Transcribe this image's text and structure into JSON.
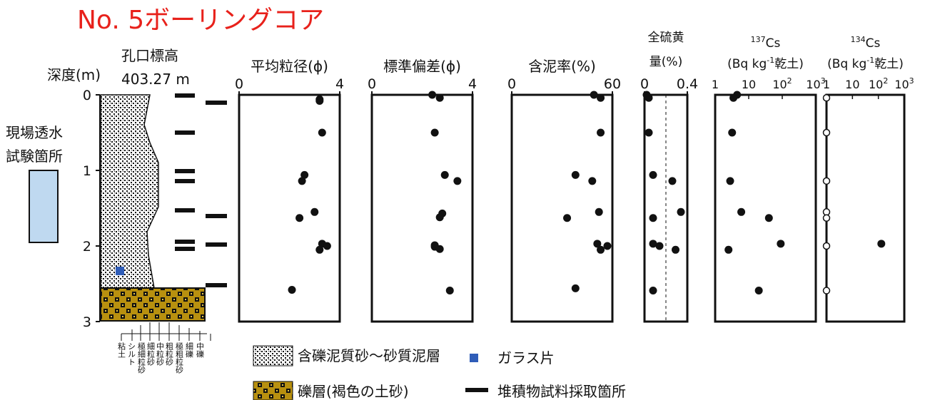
{
  "title": "No. 5ボーリングコア",
  "depth_axis": {
    "label": "深度(m)",
    "ticks": [
      "0",
      "1",
      "2",
      "3"
    ],
    "range": [
      0,
      3
    ]
  },
  "elevation": {
    "label": "孔口標高",
    "value": "403.27 m"
  },
  "test_site": {
    "label_line1": "現場透水",
    "label_line2": "試験箇所",
    "color": "#bfd9f0"
  },
  "grain_sizes": [
    "粘土",
    "シルト",
    "極細粒砂",
    "細粒砂",
    "中粒砂",
    "粗粒砂",
    "極粗粒砂",
    "細礫",
    "中礫"
  ],
  "legend": {
    "item1": "含礫泥質砂〜砂質泥層",
    "item2": "礫層(褐色の土砂)",
    "item3": "ガラス片",
    "item4": "堆積物試料採取箇所",
    "glass_color": "#2f5db8",
    "gravel_color": "#b8900f"
  },
  "chart_data": [
    {
      "type": "scatter",
      "title": "平均粒径(ϕ)",
      "xlim": [
        0,
        4
      ],
      "xticks": [
        "0",
        "4"
      ],
      "points": [
        [
          3.2,
          0.06
        ],
        [
          3.2,
          0.08
        ],
        [
          3.3,
          0.5
        ],
        [
          2.6,
          1.06
        ],
        [
          2.5,
          1.14
        ],
        [
          3.0,
          1.55
        ],
        [
          2.4,
          1.63
        ],
        [
          3.3,
          1.97
        ],
        [
          3.5,
          2.0
        ],
        [
          3.2,
          2.05
        ],
        [
          2.1,
          2.58
        ]
      ]
    },
    {
      "type": "scatter",
      "title": "標準偏差(ϕ)",
      "xlim": [
        0,
        4
      ],
      "xticks": [
        "0",
        "4"
      ],
      "points": [
        [
          2.4,
          0.0
        ],
        [
          2.7,
          0.04
        ],
        [
          2.5,
          0.5
        ],
        [
          2.9,
          1.06
        ],
        [
          3.4,
          1.14
        ],
        [
          2.8,
          1.57
        ],
        [
          2.7,
          1.62
        ],
        [
          2.5,
          1.99
        ],
        [
          2.5,
          2.01
        ],
        [
          2.7,
          2.04
        ],
        [
          3.1,
          2.59
        ]
      ]
    },
    {
      "type": "scatter",
      "title": "含泥率(%)",
      "xlim": [
        0,
        60
      ],
      "xticks": [
        "0",
        "60"
      ],
      "points": [
        [
          49,
          0.0
        ],
        [
          53,
          0.04
        ],
        [
          53,
          0.5
        ],
        [
          38,
          1.06
        ],
        [
          48,
          1.14
        ],
        [
          52,
          1.55
        ],
        [
          33,
          1.63
        ],
        [
          51,
          1.97
        ],
        [
          57,
          2.0
        ],
        [
          53,
          2.05
        ],
        [
          38,
          2.56
        ]
      ]
    },
    {
      "type": "scatter",
      "title_line1": "全硫黄",
      "title_line2": "量(%)",
      "xlim": [
        0,
        0.4
      ],
      "xticks": [
        "0",
        "0.4"
      ],
      "dashed_line_x": 0.2,
      "points": [
        [
          0.02,
          0.0
        ],
        [
          0.04,
          0.04
        ],
        [
          0.04,
          0.5
        ],
        [
          0.08,
          1.06
        ],
        [
          0.26,
          1.14
        ],
        [
          0.34,
          1.55
        ],
        [
          0.08,
          1.63
        ],
        [
          0.08,
          1.97
        ],
        [
          0.14,
          2.0
        ],
        [
          0.29,
          2.05
        ],
        [
          0.08,
          2.59
        ]
      ]
    },
    {
      "type": "scatter",
      "title_line1": "Cs",
      "title_sup": "137",
      "title_line2": "(Bq kg",
      "title_line2_sup": "-1",
      "title_line2_tail": "乾土)",
      "xscale": "log",
      "xlim": [
        1,
        1000
      ],
      "xticks": [
        "1",
        "10",
        "10",
        "10"
      ],
      "xtick_sups": [
        "",
        "",
        "2",
        "3"
      ],
      "points": [
        [
          4.5,
          0.0
        ],
        [
          3.5,
          0.04
        ],
        [
          3.2,
          0.5
        ],
        [
          2.8,
          1.14
        ],
        [
          6,
          1.55
        ],
        [
          40,
          1.63
        ],
        [
          2.5,
          2.05
        ],
        [
          90,
          1.97
        ],
        [
          20,
          2.59
        ]
      ]
    },
    {
      "type": "scatter",
      "title_line1": "Cs",
      "title_sup": "134",
      "title_line2": "(Bq kg",
      "title_line2_sup": "-1",
      "title_line2_tail": "乾土)",
      "xscale": "log",
      "xlim": [
        1,
        1000
      ],
      "xticks": [
        "1",
        "10",
        "10",
        "10"
      ],
      "xtick_sups": [
        "",
        "",
        "2",
        "3"
      ],
      "points": [
        [
          130,
          1.97
        ]
      ],
      "open_points": [
        [
          1,
          0.04
        ],
        [
          1,
          0.5
        ],
        [
          1,
          1.14
        ],
        [
          1,
          1.55
        ],
        [
          1,
          1.63
        ],
        [
          1,
          2.0
        ],
        [
          1,
          2.59
        ]
      ]
    }
  ]
}
